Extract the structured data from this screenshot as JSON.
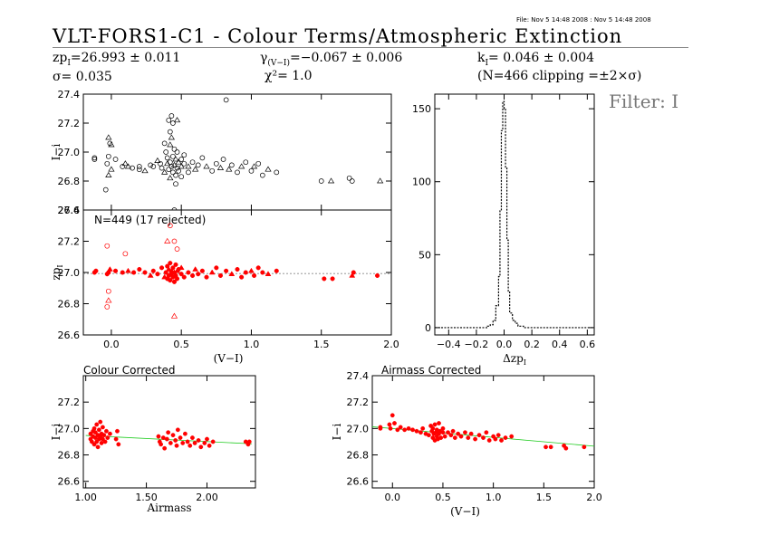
{
  "header": {
    "file_info": "File: Nov  5 14:48 2008 : Nov  5 14:48 2008",
    "title": "VLT-FORS1-C1  -  Colour Terms/Atmospheric Extinction",
    "zp_line": {
      "prefix": "zp",
      "sub": "I",
      "value": "=26.993 ± 0.011"
    },
    "gamma_line": {
      "prefix": "γ",
      "sub": "(V−I)",
      "value": "=−0.067 ± 0.006"
    },
    "k_line": {
      "prefix": "k",
      "sub": "I",
      "value": "= 0.046 ± 0.004"
    },
    "sigma_line": "σ= 0.035",
    "chi_line": "χ²=   1.0",
    "clip_line": "(N=466 clipping =±2×σ)",
    "filter_label": "Filter: I"
  },
  "chart_data": [
    {
      "id": "raw",
      "type": "scatter",
      "ylabel": "I−i",
      "xlim": [
        -0.2,
        2.0
      ],
      "ylim": [
        26.6,
        27.4
      ],
      "yticks": [
        26.6,
        26.8,
        27.0,
        27.2,
        27.4
      ],
      "ytick_labels": [
        "26.6",
        "26.8",
        "27.0",
        "27.2",
        "27.4"
      ],
      "markers": [
        "circle",
        "triangle"
      ],
      "color": "#000000",
      "points": [
        [
          -0.12,
          26.96
        ],
        [
          -0.12,
          26.95
        ],
        [
          -0.02,
          27.1
        ],
        [
          -0.02,
          26.97
        ],
        [
          -0.03,
          26.92
        ],
        [
          -0.02,
          26.84
        ],
        [
          -0.04,
          26.74
        ],
        [
          -0.01,
          27.06
        ],
        [
          0.0,
          27.05
        ],
        [
          0.03,
          26.95
        ],
        [
          0.08,
          26.9
        ],
        [
          0.12,
          26.9
        ],
        [
          0.15,
          26.89
        ],
        [
          0.2,
          26.88
        ],
        [
          0.24,
          26.87
        ],
        [
          0.28,
          26.91
        ],
        [
          0.3,
          26.9
        ],
        [
          0.33,
          26.94
        ],
        [
          0.36,
          26.89
        ],
        [
          0.38,
          27.06
        ],
        [
          0.38,
          26.86
        ],
        [
          0.39,
          27.0
        ],
        [
          0.4,
          26.96
        ],
        [
          0.4,
          26.92
        ],
        [
          0.41,
          27.22
        ],
        [
          0.41,
          26.88
        ],
        [
          0.42,
          27.05
        ],
        [
          0.42,
          26.93
        ],
        [
          0.43,
          26.9
        ],
        [
          0.43,
          27.1
        ],
        [
          0.44,
          26.86
        ],
        [
          0.44,
          26.97
        ],
        [
          0.45,
          26.91
        ],
        [
          0.45,
          27.02
        ],
        [
          0.46,
          26.84
        ],
        [
          0.46,
          26.95
        ],
        [
          0.47,
          26.89
        ],
        [
          0.47,
          27.0
        ],
        [
          0.48,
          26.93
        ],
        [
          0.48,
          26.87
        ],
        [
          0.5,
          26.95
        ],
        [
          0.5,
          26.9
        ],
        [
          0.52,
          26.92
        ],
        [
          0.52,
          26.98
        ],
        [
          0.55,
          26.9
        ],
        [
          0.55,
          26.86
        ],
        [
          0.58,
          26.93
        ],
        [
          0.6,
          26.88
        ],
        [
          0.62,
          26.91
        ],
        [
          0.65,
          26.96
        ],
        [
          0.68,
          26.9
        ],
        [
          0.72,
          26.87
        ],
        [
          0.75,
          26.92
        ],
        [
          0.78,
          26.89
        ],
        [
          0.8,
          26.95
        ],
        [
          0.82,
          27.36
        ],
        [
          0.84,
          26.88
        ],
        [
          0.86,
          26.91
        ],
        [
          0.9,
          26.86
        ],
        [
          0.93,
          26.9
        ],
        [
          0.96,
          26.93
        ],
        [
          1.0,
          26.87
        ],
        [
          1.02,
          26.9
        ],
        [
          1.05,
          26.92
        ],
        [
          1.08,
          26.84
        ],
        [
          1.12,
          26.88
        ],
        [
          1.18,
          26.86
        ],
        [
          1.5,
          26.8
        ],
        [
          1.57,
          26.8
        ],
        [
          1.7,
          26.82
        ],
        [
          1.72,
          26.8
        ],
        [
          1.92,
          26.8
        ],
        [
          0.43,
          27.25
        ],
        [
          0.44,
          27.2
        ],
        [
          0.47,
          27.22
        ],
        [
          0.42,
          27.14
        ],
        [
          0.45,
          26.6
        ],
        [
          0.0,
          26.88
        ],
        [
          0.2,
          26.9
        ],
        [
          0.35,
          26.92
        ],
        [
          0.42,
          26.82
        ],
        [
          0.46,
          26.78
        ],
        [
          0.5,
          26.83
        ],
        [
          0.1,
          26.92
        ]
      ]
    },
    {
      "id": "corrected",
      "type": "scatter",
      "annotation": "N=449 (17 rejected)",
      "ylabel": "zp",
      "ylabel_sub": "I",
      "xlabel": "(V−I)",
      "xlim": [
        -0.2,
        2.0
      ],
      "ylim": [
        26.6,
        27.4
      ],
      "xticks": [
        0.0,
        0.5,
        1.0,
        1.5,
        2.0
      ],
      "xtick_labels": [
        "0.0",
        "0.5",
        "1.0",
        "1.5",
        "2.0"
      ],
      "yticks": [
        26.6,
        26.8,
        27.0,
        27.2,
        27.4
      ],
      "ytick_labels": [
        "26.6",
        "26.8",
        "27.0",
        "27.2",
        "27.4"
      ],
      "reference_line": 26.993,
      "color": "#ff0000",
      "points": [
        [
          -0.12,
          27.0
        ],
        [
          -0.11,
          27.01
        ],
        [
          -0.02,
          27.0
        ],
        [
          -0.01,
          27.02
        ],
        [
          -0.03,
          26.99
        ],
        [
          0.03,
          27.01
        ],
        [
          0.08,
          27.0
        ],
        [
          0.12,
          27.01
        ],
        [
          0.16,
          27.0
        ],
        [
          0.2,
          27.02
        ],
        [
          0.24,
          27.0
        ],
        [
          0.28,
          26.98
        ],
        [
          0.3,
          27.01
        ],
        [
          0.33,
          26.99
        ],
        [
          0.36,
          27.03
        ],
        [
          0.38,
          26.97
        ],
        [
          0.39,
          27.0
        ],
        [
          0.4,
          27.04
        ],
        [
          0.4,
          26.96
        ],
        [
          0.41,
          27.02
        ],
        [
          0.41,
          26.98
        ],
        [
          0.42,
          27.06
        ],
        [
          0.42,
          26.95
        ],
        [
          0.43,
          27.01
        ],
        [
          0.43,
          26.99
        ],
        [
          0.44,
          27.03
        ],
        [
          0.44,
          26.97
        ],
        [
          0.45,
          27.0
        ],
        [
          0.45,
          26.94
        ],
        [
          0.46,
          27.05
        ],
        [
          0.46,
          26.98
        ],
        [
          0.47,
          27.01
        ],
        [
          0.47,
          26.96
        ],
        [
          0.48,
          27.02
        ],
        [
          0.5,
          26.99
        ],
        [
          0.5,
          27.03
        ],
        [
          0.52,
          26.97
        ],
        [
          0.55,
          27.0
        ],
        [
          0.58,
          26.98
        ],
        [
          0.6,
          27.02
        ],
        [
          0.62,
          26.99
        ],
        [
          0.65,
          27.01
        ],
        [
          0.68,
          26.97
        ],
        [
          0.72,
          27.0
        ],
        [
          0.75,
          27.03
        ],
        [
          0.78,
          26.98
        ],
        [
          0.82,
          27.01
        ],
        [
          0.86,
          26.99
        ],
        [
          0.9,
          27.02
        ],
        [
          0.93,
          26.97
        ],
        [
          0.96,
          27.0
        ],
        [
          1.0,
          27.01
        ],
        [
          1.02,
          26.98
        ],
        [
          1.05,
          27.03
        ],
        [
          1.08,
          27.0
        ],
        [
          1.12,
          26.99
        ],
        [
          1.18,
          27.01
        ],
        [
          1.52,
          26.96
        ],
        [
          1.58,
          26.96
        ],
        [
          1.72,
          26.98
        ],
        [
          1.73,
          27.0
        ],
        [
          1.9,
          26.98
        ]
      ],
      "rejected_points": [
        [
          -0.03,
          27.17
        ],
        [
          -0.02,
          26.88
        ],
        [
          -0.02,
          26.82
        ],
        [
          -0.03,
          26.78
        ],
        [
          0.42,
          27.3
        ],
        [
          0.4,
          27.2
        ],
        [
          0.45,
          27.2
        ],
        [
          0.47,
          27.15
        ],
        [
          0.45,
          26.72
        ],
        [
          0.1,
          27.12
        ]
      ]
    },
    {
      "id": "histogram",
      "type": "bar",
      "xlabel": "Δzp",
      "xlabel_sub": "I",
      "xlim": [
        -0.5,
        0.65
      ],
      "ylim": [
        -5,
        160
      ],
      "xticks": [
        -0.4,
        -0.2,
        0.0,
        0.2,
        0.4,
        0.6
      ],
      "xtick_labels": [
        "−0.4",
        "−0.2",
        "0.0",
        "0.2",
        "0.4",
        "0.6"
      ],
      "yticks": [
        0,
        50,
        100,
        150
      ],
      "ytick_labels": [
        "0",
        "50",
        "100",
        "150"
      ],
      "bin_edges": [
        -0.5,
        -0.12,
        -0.1,
        -0.08,
        -0.06,
        -0.04,
        -0.03,
        -0.02,
        -0.01,
        0.0,
        0.01,
        0.02,
        0.03,
        0.04,
        0.06,
        0.08,
        0.1,
        0.14,
        0.65
      ],
      "counts": [
        0,
        1,
        2,
        5,
        15,
        35,
        80,
        135,
        155,
        150,
        110,
        60,
        25,
        10,
        5,
        3,
        1,
        0
      ]
    },
    {
      "id": "colour-corrected",
      "type": "scatter",
      "title": "Colour Corrected",
      "xlabel": "Airmass",
      "ylabel": "I−i",
      "xlim": [
        0.98,
        2.4
      ],
      "ylim": [
        26.55,
        27.4
      ],
      "xticks": [
        1.0,
        1.5,
        2.0
      ],
      "xtick_labels": [
        "1.00",
        "1.50",
        "2.00"
      ],
      "yticks": [
        26.6,
        26.8,
        27.0,
        27.2
      ],
      "ytick_labels": [
        "26.6",
        "26.8",
        "27.0",
        "27.2"
      ],
      "fit_line": [
        [
          1.0,
          26.947
        ],
        [
          2.37,
          26.884
        ]
      ],
      "color": "#ff0000",
      "points": [
        [
          1.04,
          26.92
        ],
        [
          1.04,
          26.96
        ],
        [
          1.05,
          26.9
        ],
        [
          1.06,
          26.98
        ],
        [
          1.06,
          26.94
        ],
        [
          1.07,
          26.88
        ],
        [
          1.07,
          27.0
        ],
        [
          1.08,
          26.93
        ],
        [
          1.08,
          26.97
        ],
        [
          1.09,
          26.9
        ],
        [
          1.09,
          27.03
        ],
        [
          1.1,
          26.95
        ],
        [
          1.1,
          26.86
        ],
        [
          1.11,
          26.92
        ],
        [
          1.11,
          26.99
        ],
        [
          1.12,
          26.94
        ],
        [
          1.12,
          27.05
        ],
        [
          1.13,
          26.89
        ],
        [
          1.13,
          26.96
        ],
        [
          1.14,
          26.92
        ],
        [
          1.14,
          27.01
        ],
        [
          1.15,
          26.95
        ],
        [
          1.16,
          26.9
        ],
        [
          1.17,
          26.98
        ],
        [
          1.18,
          26.93
        ],
        [
          1.2,
          26.96
        ],
        [
          1.25,
          26.92
        ],
        [
          1.26,
          26.98
        ],
        [
          1.27,
          26.88
        ],
        [
          1.6,
          26.94
        ],
        [
          1.61,
          26.9
        ],
        [
          1.62,
          26.88
        ],
        [
          1.64,
          26.93
        ],
        [
          1.65,
          26.85
        ],
        [
          1.67,
          26.92
        ],
        [
          1.68,
          26.97
        ],
        [
          1.7,
          26.89
        ],
        [
          1.72,
          26.95
        ],
        [
          1.74,
          26.91
        ],
        [
          1.75,
          26.87
        ],
        [
          1.76,
          26.99
        ],
        [
          1.78,
          26.93
        ],
        [
          1.8,
          26.89
        ],
        [
          1.82,
          26.96
        ],
        [
          1.84,
          26.9
        ],
        [
          1.86,
          26.87
        ],
        [
          1.88,
          26.93
        ],
        [
          1.9,
          26.89
        ],
        [
          1.93,
          26.91
        ],
        [
          1.95,
          26.86
        ],
        [
          1.98,
          26.89
        ],
        [
          2.0,
          26.92
        ],
        [
          2.02,
          26.87
        ],
        [
          2.05,
          26.9
        ],
        [
          2.32,
          26.9
        ],
        [
          2.34,
          26.88
        ],
        [
          2.35,
          26.9
        ]
      ]
    },
    {
      "id": "airmass-corrected",
      "type": "scatter",
      "title": "Airmass Corrected",
      "xlabel": "(V−I)",
      "ylabel": "I−i",
      "xlim": [
        -0.2,
        2.0
      ],
      "ylim": [
        26.55,
        27.4
      ],
      "xticks": [
        0.0,
        0.5,
        1.0,
        1.5,
        2.0
      ],
      "xtick_labels": [
        "0.0",
        "0.5",
        "1.0",
        "1.5",
        "2.0"
      ],
      "yticks": [
        26.6,
        26.8,
        27.0,
        27.2,
        27.4
      ],
      "ytick_labels": [
        "26.6",
        "26.8",
        "27.0",
        "27.2",
        "27.4"
      ],
      "fit_line": [
        [
          -0.2,
          27.013
        ],
        [
          2.0,
          26.866
        ]
      ],
      "color": "#ff0000",
      "points": [
        [
          -0.12,
          27.01
        ],
        [
          -0.12,
          27.0
        ],
        [
          -0.03,
          27.03
        ],
        [
          -0.02,
          27.0
        ],
        [
          0.0,
          27.1
        ],
        [
          0.02,
          27.04
        ],
        [
          0.05,
          26.99
        ],
        [
          0.08,
          27.01
        ],
        [
          0.12,
          26.99
        ],
        [
          0.16,
          27.0
        ],
        [
          0.2,
          26.99
        ],
        [
          0.24,
          26.98
        ],
        [
          0.28,
          26.97
        ],
        [
          0.3,
          27.0
        ],
        [
          0.33,
          26.96
        ],
        [
          0.36,
          26.95
        ],
        [
          0.38,
          27.02
        ],
        [
          0.39,
          26.98
        ],
        [
          0.4,
          26.93
        ],
        [
          0.4,
          27.0
        ],
        [
          0.41,
          26.96
        ],
        [
          0.42,
          26.91
        ],
        [
          0.42,
          27.03
        ],
        [
          0.43,
          26.97
        ],
        [
          0.44,
          26.94
        ],
        [
          0.44,
          26.99
        ],
        [
          0.45,
          26.92
        ],
        [
          0.46,
          27.04
        ],
        [
          0.46,
          26.96
        ],
        [
          0.47,
          26.98
        ],
        [
          0.48,
          26.93
        ],
        [
          0.5,
          26.97
        ],
        [
          0.5,
          27.0
        ],
        [
          0.52,
          26.94
        ],
        [
          0.55,
          26.97
        ],
        [
          0.58,
          26.95
        ],
        [
          0.6,
          26.98
        ],
        [
          0.62,
          26.93
        ],
        [
          0.65,
          26.96
        ],
        [
          0.68,
          26.94
        ],
        [
          0.72,
          26.97
        ],
        [
          0.75,
          26.93
        ],
        [
          0.78,
          26.96
        ],
        [
          0.82,
          26.92
        ],
        [
          0.86,
          26.95
        ],
        [
          0.9,
          26.93
        ],
        [
          0.93,
          26.97
        ],
        [
          0.96,
          26.91
        ],
        [
          1.0,
          26.94
        ],
        [
          1.02,
          26.92
        ],
        [
          1.05,
          26.95
        ],
        [
          1.08,
          26.91
        ],
        [
          1.12,
          26.93
        ],
        [
          1.18,
          26.94
        ],
        [
          1.52,
          26.86
        ],
        [
          1.57,
          26.86
        ],
        [
          1.7,
          26.87
        ],
        [
          1.72,
          26.85
        ],
        [
          1.9,
          26.86
        ]
      ]
    }
  ]
}
